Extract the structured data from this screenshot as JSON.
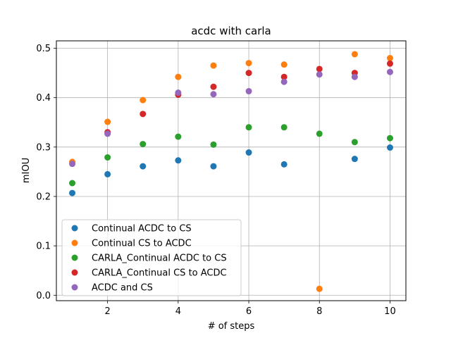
{
  "chart_data": {
    "type": "scatter",
    "title": "acdc with carla",
    "xlabel": "# of steps",
    "ylabel": "mIOU",
    "xlim": [
      0.55,
      10.45
    ],
    "ylim": [
      -0.011,
      0.515
    ],
    "xticks": [
      2,
      4,
      6,
      8,
      10
    ],
    "yticks": [
      0.0,
      0.1,
      0.2,
      0.3,
      0.4,
      0.5
    ],
    "ytick_labels": [
      "0.0",
      "0.1",
      "0.2",
      "0.3",
      "0.4",
      "0.5"
    ],
    "grid": true,
    "legend_position": "lower-left",
    "series": [
      {
        "name": "Continual ACDC to CS",
        "color": "#1f77b4",
        "x": [
          1,
          2,
          3,
          4,
          5,
          6,
          7,
          9,
          10
        ],
        "y": [
          0.207,
          0.245,
          0.261,
          0.273,
          0.261,
          0.289,
          0.265,
          0.276,
          0.299
        ]
      },
      {
        "name": "Continual CS to ACDC",
        "color": "#ff7f0e",
        "x": [
          1,
          2,
          3,
          4,
          5,
          6,
          7,
          8,
          9,
          10
        ],
        "y": [
          0.27,
          0.351,
          0.395,
          0.442,
          0.465,
          0.47,
          0.467,
          0.013,
          0.488,
          0.48
        ]
      },
      {
        "name": "CARLA_Continual ACDC to CS",
        "color": "#2ca02c",
        "x": [
          1,
          2,
          3,
          4,
          5,
          6,
          7,
          8,
          9,
          10
        ],
        "y": [
          0.227,
          0.279,
          0.306,
          0.321,
          0.305,
          0.34,
          0.34,
          0.327,
          0.31,
          0.318
        ]
      },
      {
        "name": "CARLA_Continual CS to ACDC",
        "color": "#d62728",
        "x": [
          2,
          3,
          4,
          5,
          6,
          7,
          8,
          9,
          10
        ],
        "y": [
          0.33,
          0.367,
          0.406,
          0.422,
          0.45,
          0.442,
          0.458,
          0.45,
          0.469
        ]
      },
      {
        "name": "ACDC and CS",
        "color": "#9467bd",
        "x": [
          1,
          2,
          3,
          4,
          5,
          6,
          7,
          8,
          9,
          10
        ],
        "y": [
          0.266,
          0.327,
          null,
          0.41,
          0.407,
          0.413,
          0.432,
          0.447,
          0.442,
          0.452
        ]
      }
    ]
  }
}
